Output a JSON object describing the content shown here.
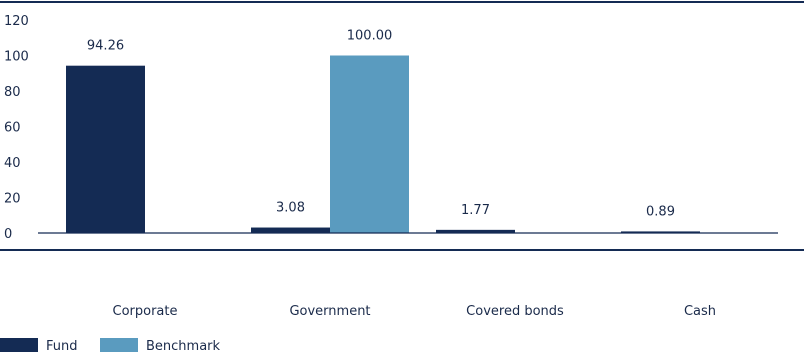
{
  "chart_data": {
    "type": "bar",
    "title": "",
    "xlabel": "",
    "ylabel": "",
    "categories": [
      "Corporate",
      "Government",
      "Covered bonds",
      "Cash"
    ],
    "series": [
      {
        "name": "Fund",
        "values": [
          94.26,
          3.08,
          1.77,
          0.89
        ],
        "labels": [
          "94.26",
          "3.08",
          "1.77",
          "0.89"
        ]
      },
      {
        "name": "Benchmark",
        "values": [
          0,
          100.0,
          0,
          0
        ],
        "labels": [
          "",
          "100.00",
          "",
          ""
        ]
      }
    ],
    "ylim": [
      0,
      120
    ],
    "yticks": [
      0,
      20,
      40,
      60,
      80,
      100,
      120
    ],
    "grid": false,
    "legend": "bottom-left",
    "colors": {
      "Fund": "#142b54",
      "Benchmark": "#5a9bbf",
      "axis": "#142b54",
      "text": "#1a2a4a"
    }
  }
}
